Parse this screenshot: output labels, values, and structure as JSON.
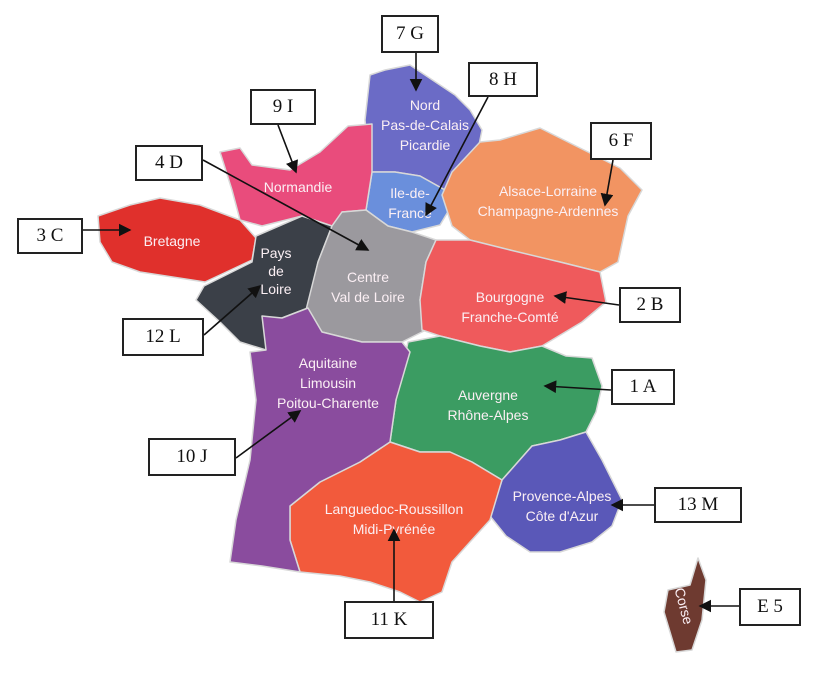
{
  "regions": [
    {
      "id": "nord",
      "lines": [
        "Nord",
        "Pas-de-Calais",
        "Picardie"
      ],
      "color": "#6b6bc6"
    },
    {
      "id": "idf",
      "lines": [
        "Ile-de-",
        "France"
      ],
      "color": "#6a8fdc"
    },
    {
      "id": "normandie",
      "lines": [
        "Normandie"
      ],
      "color": "#e94c7c"
    },
    {
      "id": "bretagne",
      "lines": [
        "Bretagne"
      ],
      "color": "#e0302c"
    },
    {
      "id": "pdl",
      "lines": [
        "Pays",
        "de",
        "Loire"
      ],
      "color": "#3b4048"
    },
    {
      "id": "centre",
      "lines": [
        "Centre",
        "Val de Loire"
      ],
      "color": "#9b999e"
    },
    {
      "id": "est",
      "lines": [
        "Alsace-Lorraine",
        "Champagne-Ardennes"
      ],
      "color": "#f29462"
    },
    {
      "id": "bourgogne",
      "lines": [
        "Bourgogne",
        "Franche-Comté"
      ],
      "color": "#ef5a5c"
    },
    {
      "id": "auvergne",
      "lines": [
        "Auvergne",
        "Rhône-Alpes"
      ],
      "color": "#3b9c62"
    },
    {
      "id": "paca",
      "lines": [
        "Provence-Alpes",
        "Côte d'Azur"
      ],
      "color": "#5a58b8"
    },
    {
      "id": "occitanie",
      "lines": [
        "Languedoc-Roussillon",
        "Midi-Pyrénée"
      ],
      "color": "#f25a3c"
    },
    {
      "id": "aquitaine",
      "lines": [
        "Aquitaine",
        "Limousin",
        "Poitou-Charente"
      ],
      "color": "#8a4c9e"
    },
    {
      "id": "corse",
      "lines": [
        "Corse"
      ],
      "color": "#6e3a30"
    }
  ],
  "callouts": [
    {
      "label": "7 G",
      "region": "nord"
    },
    {
      "label": "8 H",
      "region": "idf"
    },
    {
      "label": "9 I",
      "region": "normandie"
    },
    {
      "label": "4 D",
      "region": "centre"
    },
    {
      "label": "6 F",
      "region": "est"
    },
    {
      "label": "3 C",
      "region": "bretagne"
    },
    {
      "label": "2 B",
      "region": "bourgogne"
    },
    {
      "label": "12 L",
      "region": "pdl"
    },
    {
      "label": "1 A",
      "region": "auvergne"
    },
    {
      "label": "10 J",
      "region": "aquitaine"
    },
    {
      "label": "13 M",
      "region": "paca"
    },
    {
      "label": "11 K",
      "region": "occitanie"
    },
    {
      "label": "E 5",
      "region": "corse"
    }
  ]
}
